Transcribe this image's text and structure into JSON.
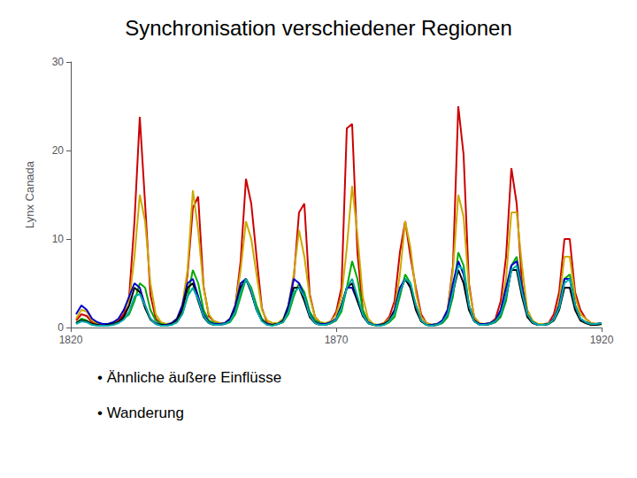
{
  "chart_data": {
    "type": "line",
    "title": "Synchronisation verschiedener Regionen",
    "ylabel": "Lynx Canada",
    "annotations": [
      "• Ähnliche äußere Einflüsse",
      "• Wanderung"
    ],
    "xlim": [
      1820,
      1920
    ],
    "xticks": [
      1820,
      1870,
      1920
    ],
    "ylim": [
      0,
      30
    ],
    "yticks": [
      0,
      10,
      20,
      30
    ],
    "grid": false,
    "x": [
      1821,
      1822,
      1823,
      1824,
      1825,
      1826,
      1827,
      1828,
      1829,
      1830,
      1831,
      1832,
      1833,
      1834,
      1835,
      1836,
      1837,
      1838,
      1839,
      1840,
      1841,
      1842,
      1843,
      1844,
      1845,
      1846,
      1847,
      1848,
      1849,
      1850,
      1851,
      1852,
      1853,
      1854,
      1855,
      1856,
      1857,
      1858,
      1859,
      1860,
      1861,
      1862,
      1863,
      1864,
      1865,
      1866,
      1867,
      1868,
      1869,
      1870,
      1871,
      1872,
      1873,
      1874,
      1875,
      1876,
      1877,
      1878,
      1879,
      1880,
      1881,
      1882,
      1883,
      1884,
      1885,
      1886,
      1887,
      1888,
      1889,
      1890,
      1891,
      1892,
      1893,
      1894,
      1895,
      1896,
      1897,
      1898,
      1899,
      1900,
      1901,
      1902,
      1903,
      1904,
      1905,
      1906,
      1907,
      1908,
      1909,
      1910,
      1911,
      1912,
      1913,
      1914,
      1915,
      1916,
      1917,
      1918,
      1919,
      1920
    ],
    "series": [
      {
        "color": "#cc0000",
        "values": [
          0.8,
          1.5,
          1.3,
          0.6,
          0.4,
          0.3,
          0.3,
          0.5,
          0.8,
          1.5,
          3.5,
          12.0,
          23.8,
          14.0,
          3.7,
          1.0,
          0.4,
          0.3,
          0.4,
          0.8,
          2.0,
          6.0,
          13.5,
          14.8,
          4.7,
          1.3,
          0.7,
          0.5,
          0.4,
          0.9,
          2.5,
          7.5,
          16.8,
          14.0,
          8.0,
          2.2,
          0.5,
          0.3,
          0.4,
          0.8,
          2.3,
          5.5,
          13.0,
          14.0,
          3.8,
          1.2,
          0.5,
          0.4,
          0.7,
          1.8,
          4.5,
          22.5,
          23.0,
          8.5,
          2.0,
          0.5,
          0.3,
          0.3,
          0.5,
          1.2,
          3.0,
          8.5,
          12.0,
          8.0,
          4.5,
          1.5,
          0.5,
          0.3,
          0.4,
          0.7,
          2.0,
          7.0,
          25.0,
          19.5,
          5.0,
          1.0,
          0.4,
          0.4,
          0.5,
          1.0,
          3.0,
          8.0,
          18.0,
          14.0,
          5.0,
          1.5,
          0.6,
          0.3,
          0.3,
          0.5,
          1.5,
          4.0,
          10.0,
          10.0,
          4.0,
          2.0,
          1.0,
          0.5,
          0.4,
          0.5
        ]
      },
      {
        "color": "#ccaa00",
        "values": [
          1.0,
          2.0,
          1.8,
          0.8,
          0.5,
          0.3,
          0.4,
          0.6,
          1.0,
          2.0,
          3.0,
          8.0,
          15.0,
          12.0,
          5.0,
          1.5,
          0.6,
          0.4,
          0.5,
          1.0,
          2.5,
          6.5,
          15.5,
          11.0,
          4.5,
          1.5,
          0.7,
          0.5,
          0.5,
          1.0,
          2.5,
          6.5,
          12.0,
          10.0,
          6.0,
          2.0,
          0.8,
          0.5,
          0.5,
          1.0,
          2.5,
          6.0,
          11.0,
          8.0,
          3.5,
          1.2,
          0.6,
          0.5,
          0.7,
          1.5,
          3.5,
          9.0,
          16.0,
          10.5,
          3.5,
          1.0,
          0.4,
          0.3,
          0.5,
          1.0,
          2.0,
          6.0,
          12.0,
          9.0,
          4.0,
          1.2,
          0.5,
          0.3,
          0.4,
          0.8,
          2.0,
          6.5,
          15.0,
          12.5,
          4.5,
          1.2,
          0.5,
          0.4,
          0.5,
          0.8,
          2.0,
          5.5,
          13.0,
          13.0,
          7.0,
          2.0,
          0.8,
          0.4,
          0.4,
          0.5,
          1.0,
          3.0,
          8.0,
          8.0,
          3.5,
          1.5,
          1.0,
          0.5,
          0.4,
          0.5
        ]
      },
      {
        "color": "#00aa00",
        "values": [
          0.5,
          1.0,
          0.8,
          0.4,
          0.3,
          0.2,
          0.3,
          0.4,
          0.6,
          1.0,
          1.5,
          3.0,
          5.0,
          4.5,
          2.0,
          0.8,
          0.4,
          0.3,
          0.4,
          0.6,
          1.5,
          3.5,
          6.5,
          5.0,
          2.0,
          0.8,
          0.5,
          0.4,
          0.4,
          0.6,
          1.5,
          3.5,
          5.5,
          4.5,
          2.5,
          1.0,
          0.4,
          0.3,
          0.4,
          0.6,
          1.5,
          3.5,
          5.0,
          4.0,
          1.8,
          0.8,
          0.5,
          0.4,
          0.5,
          0.8,
          1.8,
          4.5,
          7.5,
          5.5,
          2.0,
          0.6,
          0.3,
          0.2,
          0.3,
          0.6,
          1.2,
          3.5,
          6.0,
          5.0,
          2.2,
          0.7,
          0.3,
          0.2,
          0.3,
          0.5,
          1.2,
          3.5,
          8.5,
          7.0,
          2.5,
          0.7,
          0.4,
          0.3,
          0.4,
          0.6,
          1.2,
          3.0,
          7.0,
          8.0,
          4.5,
          1.5,
          0.6,
          0.3,
          0.3,
          0.4,
          0.8,
          2.0,
          5.5,
          6.0,
          2.5,
          1.0,
          0.6,
          0.4,
          0.3,
          0.4
        ]
      },
      {
        "color": "#0000cc",
        "values": [
          1.5,
          2.5,
          2.0,
          1.0,
          0.6,
          0.4,
          0.4,
          0.6,
          1.0,
          2.0,
          3.5,
          5.0,
          4.5,
          2.5,
          1.0,
          0.5,
          0.3,
          0.3,
          0.5,
          1.0,
          2.5,
          5.0,
          5.5,
          3.5,
          1.5,
          0.6,
          0.4,
          0.4,
          0.5,
          1.0,
          2.5,
          5.0,
          5.5,
          4.0,
          2.0,
          0.8,
          0.4,
          0.3,
          0.4,
          0.8,
          2.5,
          5.5,
          5.0,
          3.5,
          1.5,
          0.6,
          0.4,
          0.4,
          0.6,
          1.0,
          2.5,
          4.5,
          4.5,
          3.0,
          1.5,
          0.6,
          0.3,
          0.3,
          0.4,
          0.8,
          2.0,
          4.5,
          5.5,
          4.5,
          2.5,
          0.8,
          0.3,
          0.3,
          0.4,
          0.8,
          2.0,
          5.0,
          7.5,
          6.0,
          2.5,
          0.8,
          0.4,
          0.4,
          0.5,
          0.8,
          2.0,
          4.5,
          7.0,
          7.5,
          4.5,
          1.5,
          0.6,
          0.3,
          0.3,
          0.4,
          1.0,
          2.5,
          5.5,
          5.5,
          2.5,
          1.0,
          0.6,
          0.4,
          0.4,
          0.5
        ]
      },
      {
        "color": "#000000",
        "values": [
          0.5,
          0.8,
          0.7,
          0.4,
          0.3,
          0.2,
          0.3,
          0.4,
          0.6,
          1.2,
          2.5,
          4.5,
          4.0,
          2.2,
          0.9,
          0.4,
          0.3,
          0.2,
          0.4,
          0.8,
          2.0,
          4.5,
          5.0,
          3.0,
          1.2,
          0.5,
          0.3,
          0.3,
          0.4,
          0.8,
          2.0,
          4.5,
          5.5,
          4.0,
          2.0,
          0.8,
          0.3,
          0.3,
          0.4,
          0.7,
          2.0,
          4.5,
          4.5,
          3.0,
          1.2,
          0.5,
          0.3,
          0.3,
          0.5,
          0.9,
          2.5,
          4.5,
          5.0,
          3.0,
          1.3,
          0.5,
          0.3,
          0.2,
          0.4,
          0.8,
          1.8,
          4.0,
          5.5,
          4.5,
          2.0,
          0.7,
          0.3,
          0.2,
          0.3,
          0.6,
          1.5,
          4.0,
          6.5,
          5.0,
          2.0,
          0.7,
          0.3,
          0.3,
          0.4,
          0.7,
          1.5,
          3.5,
          6.5,
          6.5,
          3.5,
          1.2,
          0.5,
          0.3,
          0.3,
          0.4,
          0.8,
          2.0,
          4.5,
          4.5,
          2.0,
          0.8,
          0.5,
          0.3,
          0.3,
          0.4
        ]
      },
      {
        "color": "#00aaaa",
        "values": [
          0.4,
          0.7,
          0.6,
          0.3,
          0.2,
          0.2,
          0.2,
          0.3,
          0.5,
          0.9,
          1.8,
          3.5,
          3.8,
          2.5,
          1.0,
          0.4,
          0.2,
          0.2,
          0.3,
          0.6,
          1.5,
          3.5,
          4.5,
          3.2,
          1.3,
          0.5,
          0.3,
          0.3,
          0.4,
          0.7,
          1.8,
          4.0,
          5.5,
          4.2,
          2.0,
          0.7,
          0.3,
          0.2,
          0.4,
          0.6,
          1.8,
          4.0,
          4.5,
          3.5,
          1.4,
          0.5,
          0.3,
          0.3,
          0.5,
          0.9,
          2.2,
          4.5,
          5.5,
          3.5,
          1.5,
          0.5,
          0.3,
          0.2,
          0.3,
          0.7,
          1.6,
          4.0,
          5.5,
          5.0,
          2.5,
          0.8,
          0.3,
          0.2,
          0.3,
          0.6,
          1.5,
          4.0,
          7.0,
          6.5,
          2.5,
          0.7,
          0.3,
          0.3,
          0.4,
          0.7,
          1.5,
          3.5,
          6.5,
          7.0,
          4.0,
          1.5,
          0.6,
          0.3,
          0.3,
          0.4,
          0.9,
          2.2,
          5.0,
          5.5,
          2.5,
          1.0,
          0.6,
          0.4,
          0.4,
          0.5
        ]
      }
    ]
  }
}
